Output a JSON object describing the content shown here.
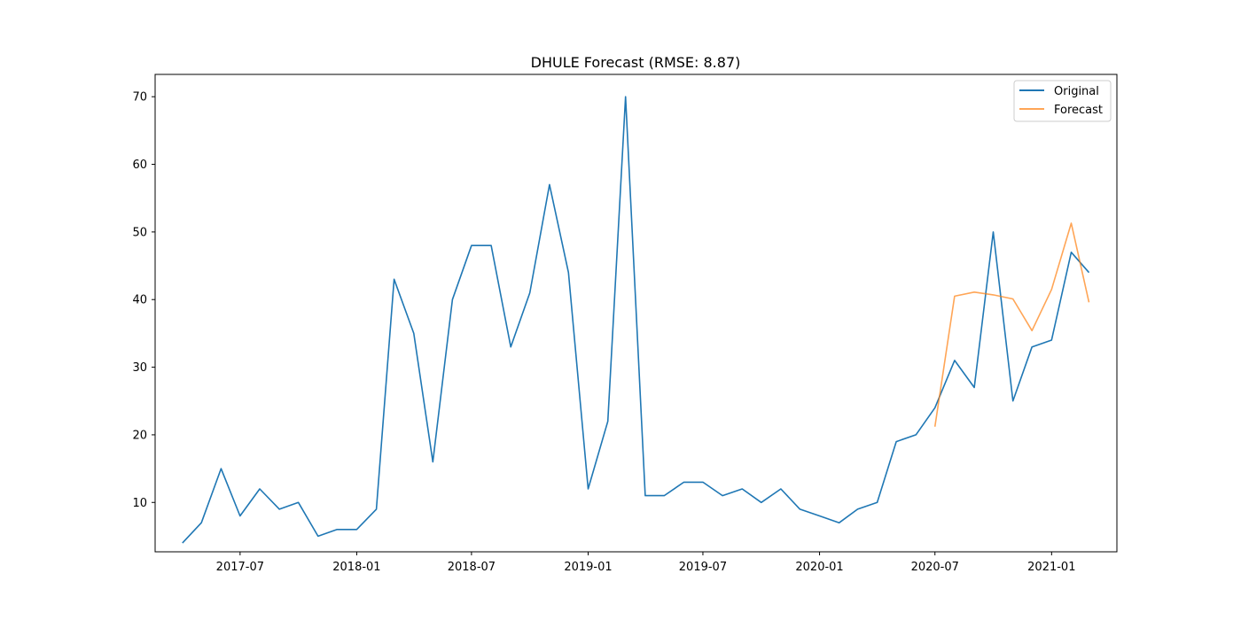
{
  "chart_data": {
    "type": "line",
    "title": "DHULE Forecast (RMSE: 8.87)",
    "xlabel": "",
    "ylabel": "",
    "xlim": [
      "2017-02-17",
      "2021-04-14"
    ],
    "ylim": [
      2.7,
      73.3
    ],
    "x_ticks": [
      "2017-07",
      "2018-01",
      "2018-07",
      "2019-01",
      "2019-07",
      "2020-01",
      "2020-07",
      "2021-01"
    ],
    "y_ticks": [
      10,
      20,
      30,
      40,
      50,
      60,
      70
    ],
    "grid": false,
    "legend_position": "top-right",
    "series": [
      {
        "name": "Original",
        "color": "#1f77b4",
        "x": [
          "2017-04-01",
          "2017-05-01",
          "2017-06-01",
          "2017-07-01",
          "2017-08-01",
          "2017-09-01",
          "2017-10-01",
          "2017-11-01",
          "2017-12-01",
          "2018-01-01",
          "2018-02-01",
          "2018-03-01",
          "2018-04-01",
          "2018-05-01",
          "2018-06-01",
          "2018-07-01",
          "2018-08-01",
          "2018-09-01",
          "2018-10-01",
          "2018-11-01",
          "2018-12-01",
          "2019-01-01",
          "2019-02-01",
          "2019-03-01",
          "2019-04-01",
          "2019-05-01",
          "2019-06-01",
          "2019-07-01",
          "2019-08-01",
          "2019-09-01",
          "2019-10-01",
          "2019-11-01",
          "2019-12-01",
          "2020-01-01",
          "2020-02-01",
          "2020-03-01",
          "2020-04-01",
          "2020-05-01",
          "2020-06-01",
          "2020-07-01",
          "2020-08-01",
          "2020-09-01",
          "2020-10-01",
          "2020-11-01",
          "2020-12-01",
          "2021-01-01",
          "2021-02-01",
          "2021-03-01"
        ],
        "values": [
          4,
          7,
          15,
          8,
          12,
          9,
          10,
          5,
          6,
          6,
          9,
          43,
          35,
          16,
          40,
          48,
          48,
          33,
          41,
          57,
          44,
          12,
          22,
          70,
          11,
          11,
          13,
          13,
          11,
          12,
          10,
          12,
          9,
          8,
          7,
          9,
          10,
          19,
          20,
          24,
          31,
          27,
          50,
          25,
          33,
          34,
          47,
          44
        ]
      },
      {
        "name": "Forecast",
        "color": "#ff7f0e",
        "x": [
          "2020-07-01",
          "2020-08-01",
          "2020-09-01",
          "2020-10-01",
          "2020-11-01",
          "2020-12-01",
          "2021-01-01",
          "2021-02-01",
          "2021-03-01"
        ],
        "values": [
          21.2,
          40.5,
          41.1,
          40.7,
          40.1,
          35.4,
          41.5,
          51.3,
          39.6
        ]
      }
    ]
  }
}
